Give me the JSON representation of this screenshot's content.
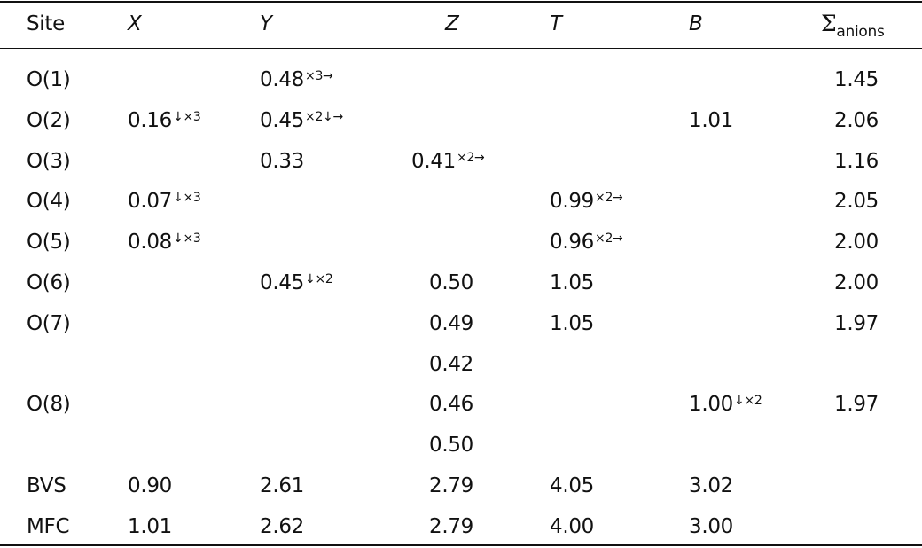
{
  "table": {
    "headers": {
      "site": "Site",
      "x": "X",
      "y": "Y",
      "z": "Z",
      "t": "T",
      "b": "B",
      "sum_symbol": "Σ",
      "sum_sub": "anions"
    },
    "rows": [
      {
        "site": "O(1)",
        "x": "",
        "x_sup": "",
        "y": "0.48",
        "y_sup": "×3→",
        "z": "",
        "z_sup": "",
        "t": "",
        "t_sup": "",
        "b": "",
        "b_sup": "",
        "sum": "1.45"
      },
      {
        "site": "O(2)",
        "x": "0.16",
        "x_sup": "↓×3",
        "y": "0.45",
        "y_sup": "×2↓→",
        "z": "",
        "z_sup": "",
        "t": "",
        "t_sup": "",
        "b": "1.01",
        "b_sup": "",
        "sum": "2.06"
      },
      {
        "site": "O(3)",
        "x": "",
        "x_sup": "",
        "y": "0.33",
        "y_sup": "",
        "z": "0.41",
        "z_sup": "×2→",
        "t": "",
        "t_sup": "",
        "b": "",
        "b_sup": "",
        "sum": "1.16"
      },
      {
        "site": "O(4)",
        "x": "0.07",
        "x_sup": "↓×3",
        "y": "",
        "y_sup": "",
        "z": "",
        "z_sup": "",
        "t": "0.99",
        "t_sup": "×2→",
        "b": "",
        "b_sup": "",
        "sum": "2.05"
      },
      {
        "site": "O(5)",
        "x": "0.08",
        "x_sup": "↓×3",
        "y": "",
        "y_sup": "",
        "z": "",
        "z_sup": "",
        "t": "0.96",
        "t_sup": "×2→",
        "b": "",
        "b_sup": "",
        "sum": "2.00"
      },
      {
        "site": "O(6)",
        "x": "",
        "x_sup": "",
        "y": "0.45",
        "y_sup": "↓×2",
        "z": "0.50",
        "z_sup": "",
        "t": "1.05",
        "t_sup": "",
        "b": "",
        "b_sup": "",
        "sum": "2.00"
      },
      {
        "site": "O(7)",
        "x": "",
        "x_sup": "",
        "y": "",
        "y_sup": "",
        "z": "0.49",
        "z_sup": "",
        "t": "1.05",
        "t_sup": "",
        "b": "",
        "b_sup": "",
        "sum": "1.97"
      },
      {
        "site": "",
        "x": "",
        "x_sup": "",
        "y": "",
        "y_sup": "",
        "z": "0.42",
        "z_sup": "",
        "t": "",
        "t_sup": "",
        "b": "",
        "b_sup": "",
        "sum": ""
      },
      {
        "site": "O(8)",
        "x": "",
        "x_sup": "",
        "y": "",
        "y_sup": "",
        "z": "0.46",
        "z_sup": "",
        "t": "",
        "t_sup": "",
        "b": "1.00",
        "b_sup": "↓×2",
        "sum": "1.97"
      },
      {
        "site": "",
        "x": "",
        "x_sup": "",
        "y": "",
        "y_sup": "",
        "z": "0.50",
        "z_sup": "",
        "t": "",
        "t_sup": "",
        "b": "",
        "b_sup": "",
        "sum": ""
      },
      {
        "site": "BVS",
        "x": "0.90",
        "x_sup": "",
        "y": "2.61",
        "y_sup": "",
        "z": "2.79",
        "z_sup": "",
        "t": "4.05",
        "t_sup": "",
        "b": "3.02",
        "b_sup": "",
        "sum": ""
      },
      {
        "site": "MFC",
        "x": "1.01",
        "x_sup": "",
        "y": "2.62",
        "y_sup": "",
        "z": "2.79",
        "z_sup": "",
        "t": "4.00",
        "t_sup": "",
        "b": "3.00",
        "b_sup": "",
        "sum": ""
      }
    ]
  }
}
